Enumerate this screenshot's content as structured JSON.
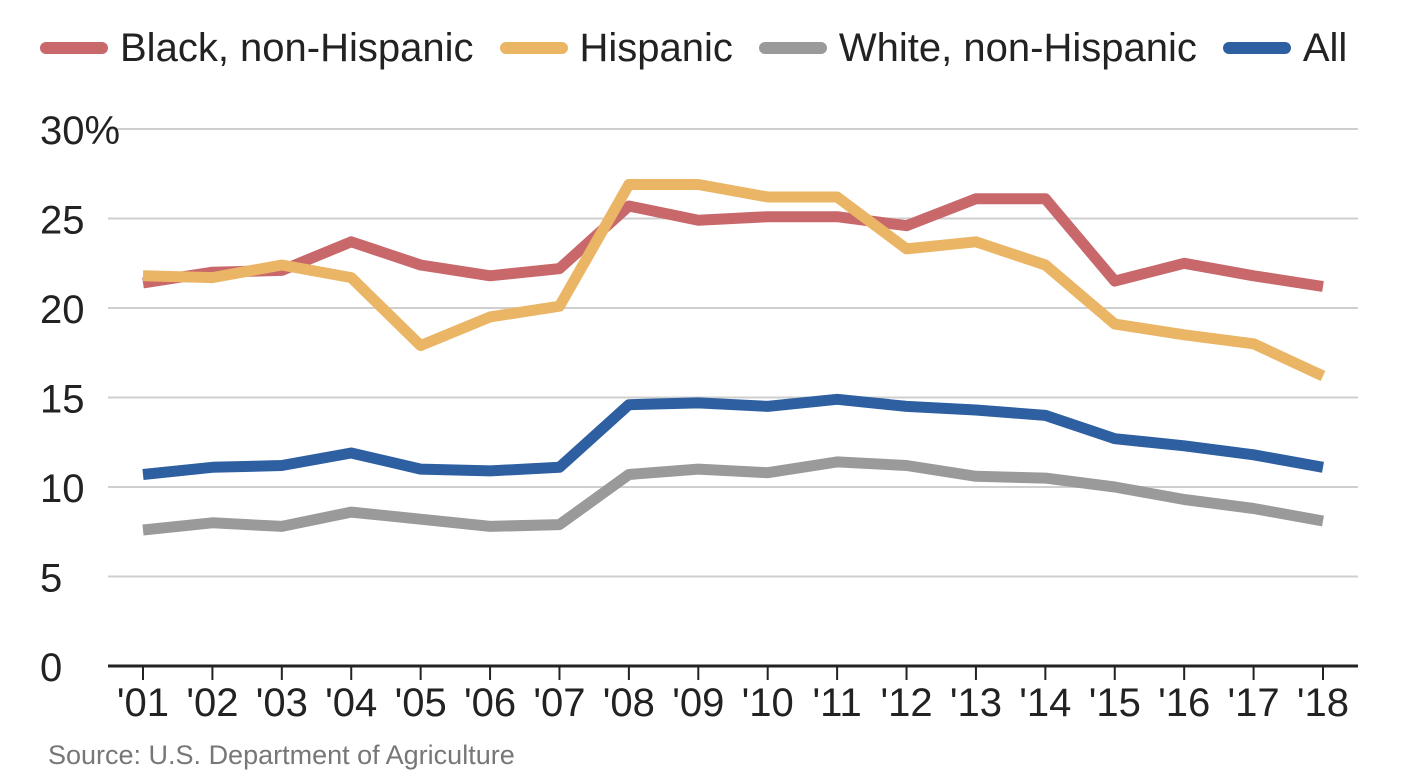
{
  "chart_data": {
    "type": "line",
    "title": "",
    "xlabel": "",
    "ylabel": "",
    "categories": [
      "'01",
      "'02",
      "'03",
      "'04",
      "'05",
      "'06",
      "'07",
      "'08",
      "'09",
      "'10",
      "'11",
      "'12",
      "'13",
      "'14",
      "'15",
      "'16",
      "'17",
      "'18"
    ],
    "ylim": [
      0,
      30
    ],
    "yticks": [
      0,
      5,
      10,
      15,
      20,
      25,
      30
    ],
    "ytick_labels": [
      "0",
      "5",
      "10",
      "15",
      "20",
      "25",
      "30%"
    ],
    "grid": true,
    "legend_position": "top",
    "series": [
      {
        "name": "Black, non-Hispanic",
        "color": "#c8686b",
        "values": [
          21.4,
          22.0,
          22.1,
          23.7,
          22.4,
          21.8,
          22.2,
          25.7,
          24.9,
          25.1,
          25.1,
          24.6,
          26.1,
          26.1,
          21.5,
          22.5,
          21.8,
          21.2
        ]
      },
      {
        "name": "Hispanic",
        "color": "#ebb566",
        "values": [
          21.8,
          21.7,
          22.4,
          21.7,
          17.9,
          19.5,
          20.1,
          26.9,
          26.9,
          26.2,
          26.2,
          23.3,
          23.7,
          22.4,
          19.1,
          18.5,
          18.0,
          16.2
        ]
      },
      {
        "name": "White, non-Hispanic",
        "color": "#9a9a9a",
        "values": [
          7.6,
          8.0,
          7.8,
          8.6,
          8.2,
          7.8,
          7.9,
          10.7,
          11.0,
          10.8,
          11.4,
          11.2,
          10.6,
          10.5,
          10.0,
          9.3,
          8.8,
          8.1
        ]
      },
      {
        "name": "All",
        "color": "#2d5fa1",
        "values": [
          10.7,
          11.1,
          11.2,
          11.9,
          11.0,
          10.9,
          11.1,
          14.6,
          14.7,
          14.5,
          14.9,
          14.5,
          14.3,
          14.0,
          12.7,
          12.3,
          11.8,
          11.1
        ]
      }
    ]
  },
  "source": "Source: U.S. Department of Agriculture"
}
